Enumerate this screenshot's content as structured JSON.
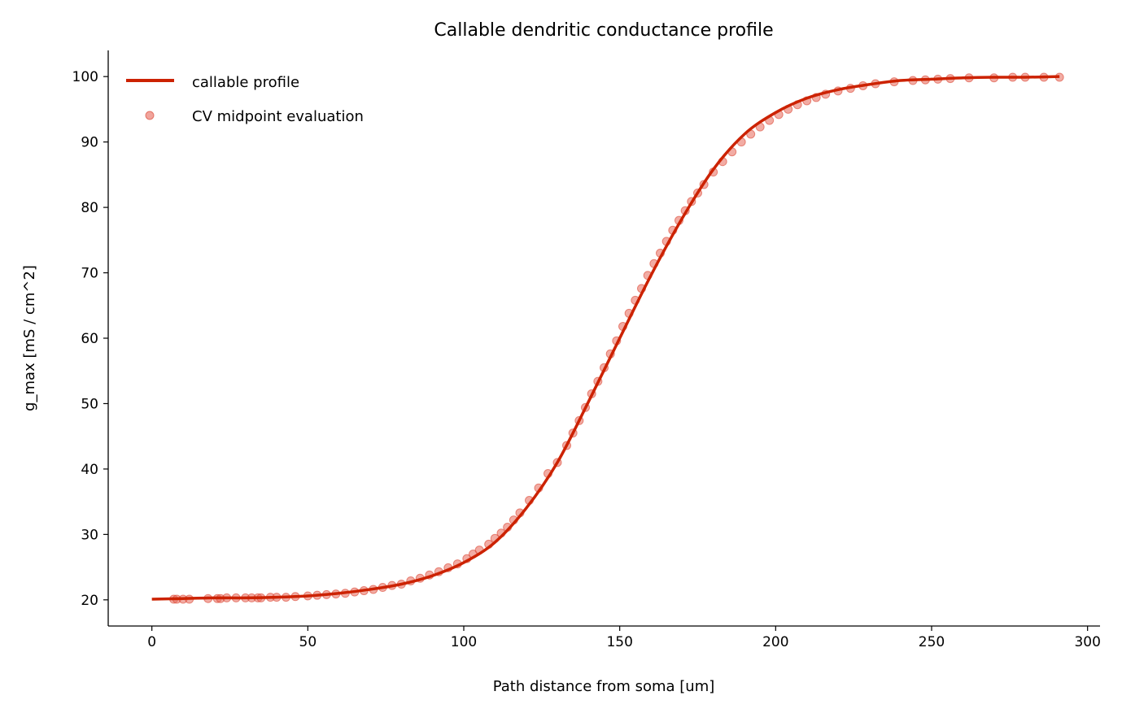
{
  "chart_data": {
    "type": "line",
    "title": "Callable dendritic conductance profile",
    "xlabel": "Path distance from soma [um]",
    "ylabel": "g_max [mS / cm^2]",
    "xlim": [
      -14,
      304
    ],
    "ylim": [
      16,
      104
    ],
    "xticks": [
      0,
      50,
      100,
      150,
      200,
      250,
      300
    ],
    "yticks": [
      20,
      30,
      40,
      50,
      60,
      70,
      80,
      90,
      100
    ],
    "xtick_labels": [
      "0",
      "50",
      "100",
      "150",
      "200",
      "250",
      "300"
    ],
    "ytick_labels": [
      "20",
      "30",
      "40",
      "50",
      "60",
      "70",
      "80",
      "90",
      "100"
    ],
    "grid": false,
    "legend_position": "top-left",
    "series": [
      {
        "name": "callable profile",
        "kind": "line",
        "color": "#cc2200",
        "x": [
          0,
          10,
          20,
          30,
          40,
          50,
          60,
          70,
          80,
          90,
          100,
          110,
          120,
          130,
          140,
          150,
          160,
          170,
          180,
          190,
          200,
          210,
          220,
          230,
          240,
          250,
          260,
          270,
          280,
          291
        ],
        "y": [
          20.1,
          20.2,
          20.3,
          20.3,
          20.4,
          20.6,
          21.0,
          21.6,
          22.4,
          23.7,
          25.7,
          28.8,
          34.0,
          41.0,
          50.3,
          60.0,
          69.6,
          78.3,
          85.8,
          91.2,
          94.5,
          96.7,
          98.0,
          98.8,
          99.4,
          99.6,
          99.8,
          99.9,
          99.9,
          100.0
        ]
      },
      {
        "name": "CV midpoint evaluation",
        "kind": "scatter",
        "color": "#e8675a",
        "x": [
          7,
          8,
          10,
          12,
          18,
          21,
          22,
          24,
          27,
          30,
          32,
          34,
          35,
          38,
          40,
          43,
          46,
          50,
          53,
          56,
          59,
          62,
          65,
          68,
          71,
          74,
          77,
          80,
          83,
          86,
          89,
          92,
          95,
          98,
          101,
          103,
          105,
          108,
          110,
          112,
          114,
          116,
          118,
          121,
          124,
          127,
          130,
          133,
          135,
          137,
          139,
          141,
          143,
          145,
          147,
          149,
          151,
          153,
          155,
          157,
          159,
          161,
          163,
          165,
          167,
          169,
          171,
          173,
          175,
          177,
          180,
          183,
          186,
          189,
          192,
          195,
          198,
          201,
          204,
          207,
          210,
          213,
          216,
          220,
          224,
          228,
          232,
          238,
          244,
          248,
          252,
          256,
          262,
          270,
          276,
          280,
          286,
          291
        ],
        "y": [
          20.1,
          20.1,
          20.1,
          20.1,
          20.2,
          20.2,
          20.2,
          20.3,
          20.3,
          20.3,
          20.3,
          20.3,
          20.3,
          20.4,
          20.4,
          20.4,
          20.5,
          20.6,
          20.7,
          20.8,
          20.9,
          21.0,
          21.2,
          21.4,
          21.6,
          21.9,
          22.2,
          22.4,
          22.9,
          23.3,
          23.8,
          24.3,
          24.9,
          25.5,
          26.3,
          27.0,
          27.6,
          28.5,
          29.4,
          30.2,
          31.1,
          32.2,
          33.3,
          35.2,
          37.1,
          39.3,
          41.0,
          43.6,
          45.5,
          47.4,
          49.4,
          51.5,
          53.4,
          55.5,
          57.6,
          59.6,
          61.8,
          63.8,
          65.8,
          67.6,
          69.6,
          71.4,
          73.0,
          74.8,
          76.5,
          78.0,
          79.5,
          80.9,
          82.2,
          83.5,
          85.4,
          87.0,
          88.5,
          90.0,
          91.2,
          92.3,
          93.3,
          94.2,
          95.0,
          95.7,
          96.3,
          96.8,
          97.3,
          97.8,
          98.2,
          98.6,
          98.9,
          99.2,
          99.4,
          99.5,
          99.6,
          99.7,
          99.8,
          99.8,
          99.9,
          99.9,
          99.9,
          99.9
        ]
      }
    ]
  }
}
